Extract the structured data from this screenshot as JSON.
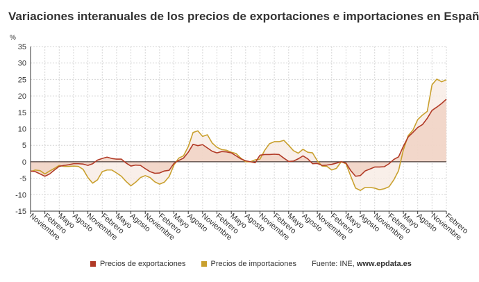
{
  "chart_data": {
    "type": "line",
    "title": "Variaciones interanuales de los precios de exportaciones e importaciones en España",
    "ylabel": "%",
    "ylim": [
      -15,
      35
    ],
    "yticks": [
      35,
      30,
      25,
      20,
      15,
      10,
      5,
      0,
      -5,
      -10,
      -15
    ],
    "grid": true,
    "legend_position": "bottom",
    "x_tick_labels": [
      "Noviembre",
      "Febrero",
      "Mayo",
      "Agosto",
      "Noviembre",
      "Febrero",
      "Mayo",
      "Agosto",
      "Noviembre",
      "Febrero",
      "Mayo",
      "Agosto",
      "Noviembre",
      "Febrero",
      "Mayo",
      "Agosto",
      "Noviembre",
      "Febrero",
      "Mayo",
      "Agosto",
      "Noviembre",
      "Febrero",
      "Mayo",
      "Agosto",
      "Noviembre",
      "Febrero",
      "Mayo",
      "Agosto",
      "Noviembre",
      "Febrero"
    ],
    "series": [
      {
        "name": "Precios de exportaciones",
        "color": "#b13a26",
        "fill": "#efcfbf",
        "values": [
          -2.8,
          -3,
          -3.7,
          -4.4,
          -3.7,
          -2.5,
          -1.4,
          -1.1,
          -0.9,
          -0.6,
          -0.6,
          -0.7,
          -1.1,
          -0.6,
          0.5,
          1,
          1.4,
          1,
          0.8,
          0.8,
          -0.4,
          -1.3,
          -1,
          -1.1,
          -2.1,
          -3,
          -3.5,
          -3.4,
          -2.8,
          -2.6,
          -0.5,
          0.4,
          1.1,
          2.9,
          5.3,
          4.9,
          5.2,
          4.2,
          3.2,
          2.7,
          3.1,
          3,
          2.7,
          1.8,
          0.9,
          0.3,
          0,
          -0.3,
          2,
          2.2,
          2.2,
          2.3,
          2.2,
          1.1,
          0.1,
          0.2,
          0.9,
          1.8,
          0.9,
          -0.6,
          -0.5,
          -1.1,
          -1,
          -0.8,
          -0.4,
          0,
          -0.4,
          -2.7,
          -4.4,
          -4.2,
          -2.8,
          -2.2,
          -1.6,
          -1.6,
          -1.5,
          -0.6,
          0.7,
          1.5,
          4.7,
          7.5,
          8.9,
          10.4,
          11.3,
          13.2,
          15.6,
          16.6,
          17.7,
          19
        ]
      },
      {
        "name": "Precios de importaciones",
        "color": "#c9a02e",
        "fill": "#f8ebe3",
        "values": [
          -3,
          -2.5,
          -2.7,
          -3.7,
          -2.8,
          -2,
          -1.1,
          -1.4,
          -1.4,
          -1.3,
          -1.4,
          -2.3,
          -4.8,
          -6.5,
          -5.5,
          -3,
          -2.5,
          -2.5,
          -3.4,
          -4.4,
          -6,
          -7.3,
          -6.2,
          -4.8,
          -4.2,
          -4.8,
          -6.1,
          -6.8,
          -6.2,
          -4.5,
          -1,
          1.1,
          1.8,
          4.6,
          8.9,
          9.4,
          7.7,
          8.2,
          5.7,
          4.4,
          3.7,
          3.5,
          2.9,
          2.5,
          1.1,
          0,
          0,
          0.6,
          0.8,
          3.5,
          5.5,
          6.1,
          6.1,
          6.5,
          5,
          3.4,
          2.6,
          3.8,
          2.9,
          2.7,
          0.3,
          -1.3,
          -1.4,
          -2.5,
          -2,
          0,
          -0.6,
          -4.4,
          -8,
          -8.7,
          -7.8,
          -7.8,
          -8,
          -8.5,
          -8.2,
          -7.6,
          -5.5,
          -2.7,
          3.6,
          7.9,
          9.6,
          12.8,
          14.2,
          15.3,
          23.4,
          25.1,
          24.3,
          24.9
        ]
      }
    ]
  },
  "source": {
    "prefix": "Fuente: INE, ",
    "site": "www.epdata.es"
  }
}
